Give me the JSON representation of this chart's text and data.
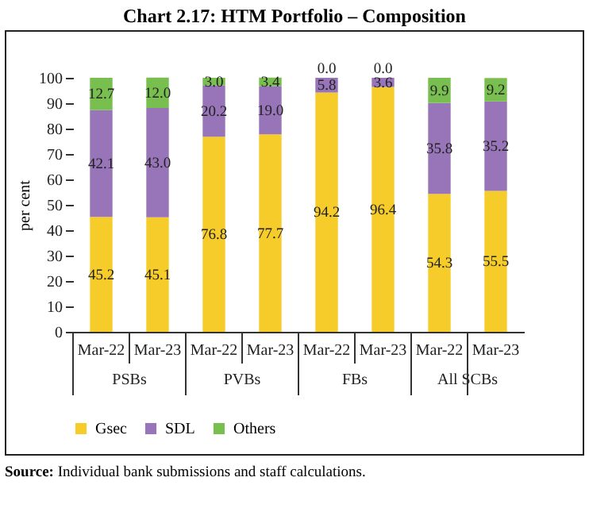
{
  "chart_data": {
    "type": "bar",
    "title": "Chart 2.17: HTM Portfolio – Composition",
    "ylabel": "per cent",
    "categories": [
      "Mar-22",
      "Mar-23",
      "Mar-22",
      "Mar-23",
      "Mar-22",
      "Mar-23",
      "Mar-22",
      "Mar-23"
    ],
    "series": [
      {
        "name": "Gsec",
        "color": "#f5cc2a",
        "values": [
          45.2,
          45.1,
          76.8,
          77.7,
          94.2,
          96.4,
          54.3,
          55.5
        ],
        "value_labels": [
          "45.2",
          "45.1",
          "76.8",
          "77.7",
          "94.2",
          "96.4",
          "54.3",
          "55.5"
        ]
      },
      {
        "name": "SDL",
        "color": "#9775b8",
        "values": [
          42.1,
          43.0,
          20.2,
          19.0,
          5.8,
          3.6,
          35.8,
          35.2
        ],
        "value_labels": [
          "42.1",
          "43.0",
          "20.2",
          "19.0",
          "5.8",
          "3.6",
          "35.8",
          "35.2"
        ]
      },
      {
        "name": "Others",
        "color": "#78bf4f",
        "values": [
          12.7,
          12.0,
          3.0,
          3.4,
          0.0,
          0.0,
          9.9,
          9.2
        ],
        "value_labels": [
          "12.7",
          "12.0",
          "3.0",
          "3.4",
          "0.0",
          "0.0",
          "9.9",
          "9.2"
        ]
      }
    ],
    "stacked": true,
    "ylim": [
      0,
      100
    ],
    "yticks": [
      0,
      10,
      20,
      30,
      40,
      50,
      60,
      70,
      80,
      90,
      100
    ],
    "grid": false,
    "legend": "bottom",
    "annotations": [
      "PSBs",
      "PVBs",
      "FBs",
      "All SCBs",
      "Source: Individual bank submissions and staff calculations."
    ]
  }
}
